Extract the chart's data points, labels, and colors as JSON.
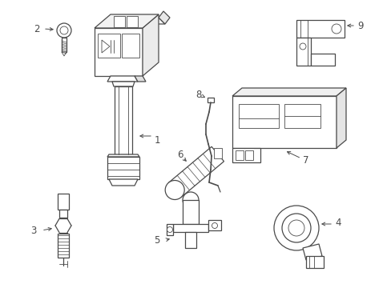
{
  "bg_color": "#ffffff",
  "line_color": "#4a4a4a",
  "figsize": [
    4.89,
    3.6
  ],
  "dpi": 100,
  "lw": 0.9,
  "lw2": 0.6,
  "label_fs": 8.5
}
